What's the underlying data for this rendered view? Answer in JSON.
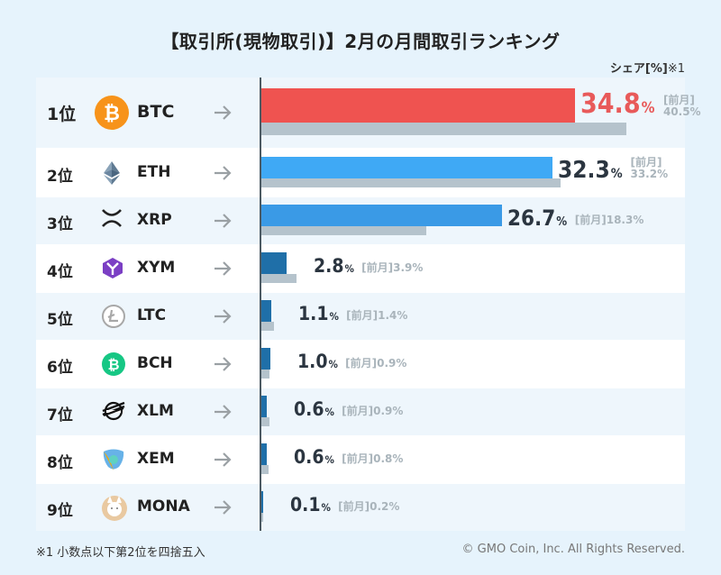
{
  "title": "【取引所(現物取引)】2月の月間取引ランキング",
  "unit_label": "シェア[%]",
  "unit_mark": "※1",
  "footnote": "※1  小数点以下第2位を四捨五入",
  "copyright": "© GMO Coin, Inc. All Rights Reserved.",
  "prev_label": "[前月]",
  "colors": {
    "bar_first": "#ef5350",
    "bar_current": "#3fa9f5",
    "bar_dark": "#1f6fa8",
    "bar_prev": "#b5c3cc",
    "first_value": "#e85a5a"
  },
  "chart_data": {
    "type": "bar",
    "title": "【取引所(現物取引)】2月の月間取引ランキング",
    "ylabel": "シェア[%]",
    "xlim": [
      0,
      45
    ],
    "categories": [
      "BTC",
      "ETH",
      "XRP",
      "XYM",
      "LTC",
      "BCH",
      "XLM",
      "XEM",
      "MONA"
    ],
    "ranks": [
      "1位",
      "2位",
      "3位",
      "4位",
      "5位",
      "6位",
      "7位",
      "8位",
      "9位"
    ],
    "series": [
      {
        "name": "2月",
        "values": [
          34.8,
          32.3,
          26.7,
          2.8,
          1.1,
          1.0,
          0.6,
          0.6,
          0.1
        ]
      },
      {
        "name": "前月",
        "values": [
          40.5,
          33.2,
          18.3,
          3.9,
          1.4,
          0.9,
          0.9,
          0.8,
          0.2
        ]
      }
    ],
    "value_labels": [
      "34.8",
      "32.3",
      "26.7",
      "2.8",
      "1.1",
      "1.0",
      "0.6",
      "0.6",
      "0.1"
    ],
    "prev_labels": [
      "40.5%",
      "33.2%",
      "18.3%",
      "3.9%",
      "1.4%",
      "0.9%",
      "0.9%",
      "0.8%",
      "0.2%"
    ],
    "pct_symbol": "%",
    "icons": [
      "btc-icon",
      "eth-icon",
      "xrp-icon",
      "xym-icon",
      "ltc-icon",
      "bch-icon",
      "xlm-icon",
      "xem-icon",
      "mona-icon"
    ]
  }
}
